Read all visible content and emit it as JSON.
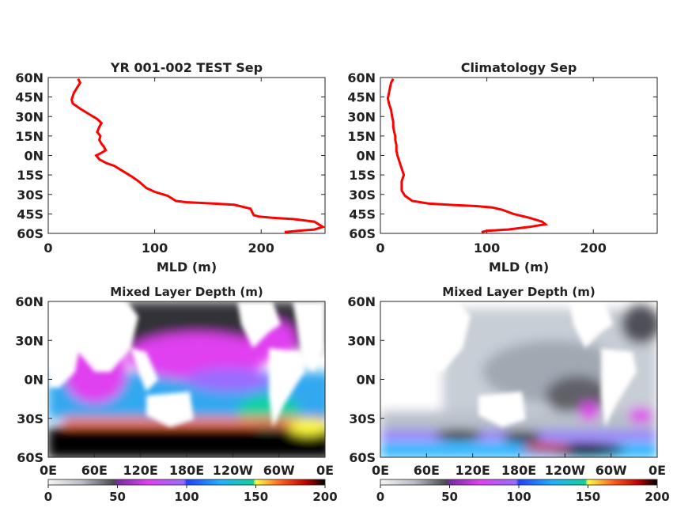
{
  "chart_data": [
    {
      "type": "line",
      "title": "YR 001-002 TEST Sep",
      "xlabel": "MLD (m)",
      "ylabel": "",
      "xlim": [
        0,
        260
      ],
      "ylim": [
        -60,
        60
      ],
      "xticks": [
        0,
        100,
        200
      ],
      "yticks": [
        "60N",
        "45N",
        "30N",
        "15N",
        "0N",
        "15S",
        "30S",
        "45S",
        "60S"
      ],
      "ytick_values": [
        60,
        45,
        30,
        15,
        0,
        -15,
        -30,
        -45,
        -60
      ],
      "series": [
        {
          "color": "#ff0000",
          "x": [
            28,
            30,
            27,
            24,
            22,
            23,
            30,
            38,
            46,
            50,
            48,
            46,
            49,
            48,
            50,
            52,
            54,
            50,
            45,
            48,
            55,
            62,
            70,
            78,
            85,
            92,
            100,
            112,
            120,
            130,
            155,
            175,
            190,
            193,
            198,
            210,
            230,
            250,
            258,
            250,
            235,
            222
          ],
          "y": [
            59,
            56,
            52,
            48,
            43,
            40,
            36,
            32,
            28,
            25,
            22,
            18,
            15,
            12,
            9,
            7,
            4,
            2,
            0,
            -3,
            -6,
            -8,
            -12,
            -16,
            -20,
            -25,
            -28,
            -31,
            -35,
            -36,
            -37,
            -38,
            -41,
            -46,
            -47,
            -48,
            -49,
            -51,
            -55,
            -57,
            -58,
            -59
          ]
        }
      ]
    },
    {
      "type": "line",
      "title": "Climatology Sep",
      "xlabel": "MLD (m)",
      "ylabel": "",
      "xlim": [
        0,
        260
      ],
      "ylim": [
        -60,
        60
      ],
      "xticks": [
        0,
        100,
        200
      ],
      "yticks": [
        "60N",
        "45N",
        "30N",
        "15N",
        "0N",
        "15S",
        "30S",
        "45S",
        "60S"
      ],
      "ytick_values": [
        60,
        45,
        30,
        15,
        0,
        -15,
        -30,
        -45,
        -60
      ],
      "series": [
        {
          "color": "#ff0000",
          "x": [
            12,
            10,
            9,
            8,
            7,
            8,
            10,
            11,
            12,
            12,
            13,
            14,
            14,
            15,
            15,
            16,
            18,
            20,
            22,
            20,
            20,
            23,
            30,
            45,
            65,
            90,
            105,
            115,
            125,
            140,
            152,
            155,
            140,
            120,
            100,
            95
          ],
          "y": [
            59,
            56,
            52,
            48,
            44,
            40,
            35,
            30,
            26,
            22,
            18,
            15,
            12,
            8,
            4,
            0,
            -5,
            -10,
            -15,
            -20,
            -27,
            -31,
            -35,
            -37,
            -38,
            -39,
            -40,
            -42,
            -45,
            -48,
            -51,
            -53,
            -55,
            -57,
            -58,
            -59
          ]
        }
      ]
    },
    {
      "type": "heatmap",
      "title": "Mixed Layer Depth (m)",
      "xticks": [
        "0E",
        "60E",
        "120E",
        "180E",
        "120W",
        "60W",
        "0E"
      ],
      "yticks": [
        "60N",
        "30N",
        "0N",
        "30S",
        "60S"
      ],
      "colorbar_ticks": [
        "0",
        "50",
        "100",
        "150",
        "200"
      ],
      "colorbar_range": [
        0,
        200
      ]
    },
    {
      "type": "heatmap",
      "title": "Mixed Layer Depth (m)",
      "xticks": [
        "0E",
        "60E",
        "120E",
        "180E",
        "120W",
        "60W",
        "0E"
      ],
      "yticks": [
        "60N",
        "30N",
        "0N",
        "30S",
        "60S"
      ],
      "colorbar_ticks": [
        "0",
        "50",
        "100",
        "150",
        "200"
      ],
      "colorbar_range": [
        0,
        200
      ]
    }
  ]
}
